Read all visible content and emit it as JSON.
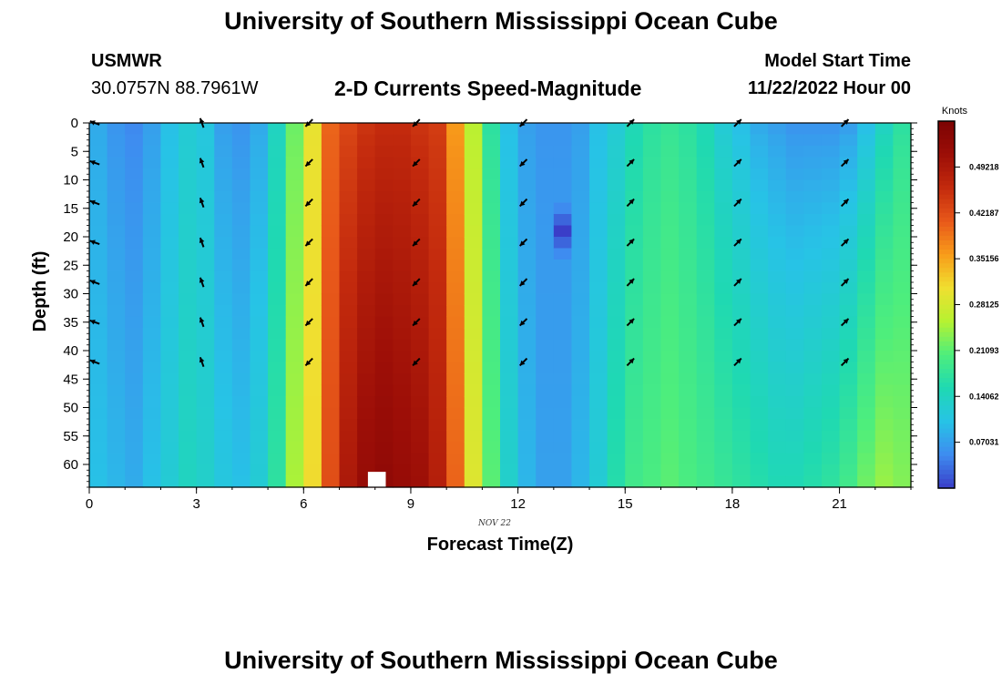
{
  "header": {
    "title": "University of Southern Mississippi Ocean Cube",
    "station": "USMWR",
    "coords": "30.0757N  88.7961W",
    "plot_title": "2-D Currents Speed-Magnitude",
    "model_label": "Model Start Time",
    "model_time": "11/22/2022 Hour 00"
  },
  "footer": {
    "title": "University of Southern Mississippi Ocean Cube"
  },
  "colors": {
    "colormap": [
      "#3a3ec8",
      "#3e8cf0",
      "#27c3e6",
      "#1fd9b2",
      "#4eee7c",
      "#b6f231",
      "#f0df30",
      "#f89c1a",
      "#e8581a",
      "#c32a0d",
      "#9c0e07",
      "#7c0303"
    ],
    "arrow": "#000000",
    "frame": "#000000"
  },
  "chart_data": {
    "type": "heatmap",
    "title": "2-D Currents Speed-Magnitude",
    "xlabel": "Forecast Time(Z)",
    "ylabel": "Depth (ft)",
    "x_ticks": [
      0,
      3,
      6,
      9,
      12,
      15,
      18,
      21
    ],
    "y_ticks": [
      0,
      5,
      10,
      15,
      20,
      25,
      30,
      35,
      40,
      45,
      50,
      55,
      60
    ],
    "xlim": [
      0,
      23
    ],
    "ylim": [
      0,
      64
    ],
    "date_label": "NOV 22",
    "colorbar": {
      "title": "Knots",
      "ticks": [
        "0.49218",
        "0.42187",
        "0.35156",
        "0.28125",
        "0.21093",
        "0.14062",
        "0.07031"
      ],
      "tick_values": [
        0.49218,
        0.42187,
        0.35156,
        0.28125,
        0.21093,
        0.14062,
        0.07031
      ],
      "range": [
        0,
        0.5625
      ]
    },
    "hours": [
      0,
      0.5,
      1,
      1.5,
      2,
      2.5,
      3,
      3.5,
      4,
      4.5,
      5,
      5.5,
      6,
      6.5,
      7,
      7.5,
      8,
      8.5,
      9,
      9.5,
      10,
      10.5,
      11,
      11.5,
      12,
      12.5,
      13,
      13.5,
      14,
      14.5,
      15,
      15.5,
      16,
      16.5,
      17,
      17.5,
      18,
      18.5,
      19,
      19.5,
      20,
      20.5,
      21,
      21.5,
      22,
      22.5
    ],
    "surface_speed": [
      0.08,
      0.06,
      0.05,
      0.07,
      0.1,
      0.12,
      0.11,
      0.07,
      0.06,
      0.08,
      0.14,
      0.22,
      0.3,
      0.4,
      0.43,
      0.45,
      0.46,
      0.46,
      0.45,
      0.44,
      0.36,
      0.26,
      0.17,
      0.1,
      0.07,
      0.06,
      0.06,
      0.07,
      0.1,
      0.12,
      0.15,
      0.17,
      0.18,
      0.17,
      0.15,
      0.12,
      0.1,
      0.08,
      0.07,
      0.06,
      0.06,
      0.06,
      0.07,
      0.1,
      0.14,
      0.17
    ],
    "bottom_speed": [
      0.1,
      0.09,
      0.08,
      0.1,
      0.12,
      0.14,
      0.13,
      0.11,
      0.1,
      0.12,
      0.17,
      0.25,
      0.31,
      0.42,
      0.49,
      0.52,
      0.53,
      0.52,
      0.51,
      0.48,
      0.4,
      0.29,
      0.21,
      0.13,
      0.09,
      0.07,
      0.07,
      0.09,
      0.12,
      0.16,
      0.19,
      0.2,
      0.21,
      0.2,
      0.19,
      0.18,
      0.17,
      0.16,
      0.15,
      0.15,
      0.16,
      0.17,
      0.19,
      0.22,
      0.24,
      0.23
    ],
    "depth_cells": 32,
    "anomaly": {
      "hour": 13,
      "depth_range": [
        14,
        24
      ],
      "speed": 0.0
    },
    "vectors": {
      "hours": [
        0,
        3,
        6,
        9,
        12,
        15,
        18,
        21
      ],
      "depths": [
        0,
        7,
        14,
        21,
        28,
        35,
        42
      ],
      "direction_deg": [
        200,
        250,
        135,
        135,
        135,
        315,
        315,
        315
      ]
    }
  }
}
